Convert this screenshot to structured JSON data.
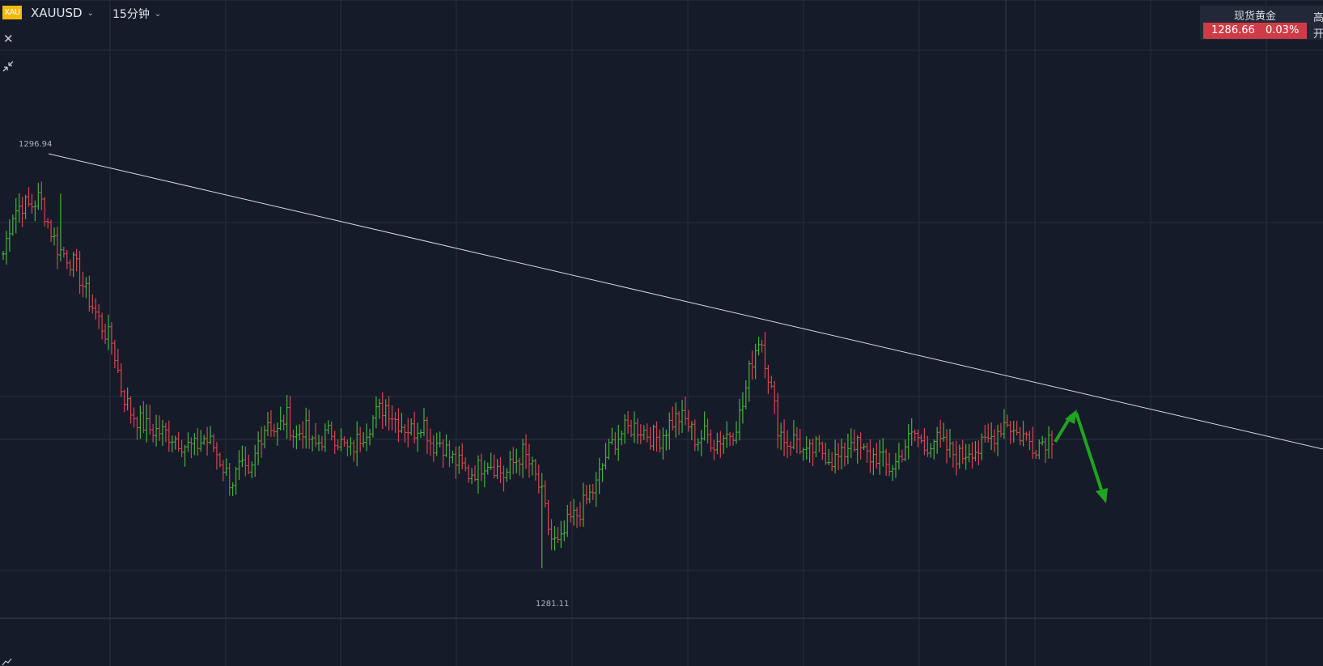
{
  "header": {
    "badge": "XAU",
    "symbol": "XAUUSD",
    "interval": "15分钟"
  },
  "icons": {
    "close": "close-icon",
    "shrink": "collapse-arrows-icon",
    "chevron": "chevron-down-icon",
    "bottom": "chart-line-icon"
  },
  "quote_panel": {
    "name": "现货黄金",
    "price": "1286.66",
    "change": "0.03%",
    "side_label_high": "高",
    "side_label_open": "开"
  },
  "colors": {
    "background": "#161b29",
    "up": "#45b33a",
    "down": "#d9434f",
    "trendline": "#d6d9df",
    "arrow": "#1fa51f",
    "badge": "#f0b90b",
    "price_bg": "#cf3c47"
  },
  "chart_data": {
    "type": "ohlc",
    "title": "",
    "xlabel": "",
    "ylabel": "",
    "ylim": [
      1279.0,
      1303.0
    ],
    "grid": true,
    "annotations": {
      "high_label": "1296.94",
      "low_label": "1281.11",
      "high": 1296.94,
      "low": 1281.11
    },
    "waypoints": [
      1294.4,
      1296.1,
      1296.5,
      1296.4,
      1296.8,
      1295.6,
      1294.6,
      1294.3,
      1293.8,
      1292.8,
      1292.0,
      1291.2,
      1290.6,
      1288.6,
      1287.7,
      1287.3,
      1287.0,
      1286.9,
      1286.8,
      1286.6,
      1286.3,
      1286.2,
      1286.6,
      1286.3,
      1285.5,
      1284.7,
      1285.4,
      1284.8,
      1286.5,
      1287.4,
      1286.8,
      1287.6,
      1286.6,
      1287.1,
      1286.2,
      1286.6,
      1286.9,
      1286.4,
      1286.0,
      1286.6,
      1287.1,
      1287.7,
      1288.0,
      1287.4,
      1287.1,
      1286.9,
      1287.4,
      1286.3,
      1286.5,
      1285.8,
      1285.5,
      1285.1,
      1285.3,
      1285.7,
      1285.4,
      1285.0,
      1285.6,
      1286.0,
      1285.3,
      1284.3,
      1282.4,
      1282.0,
      1283.1,
      1283.4,
      1284.0,
      1284.6,
      1285.8,
      1286.5,
      1286.9,
      1287.1,
      1287.0,
      1286.7,
      1286.6,
      1287.2,
      1287.5,
      1287.3,
      1286.5,
      1286.8,
      1286.4,
      1286.7,
      1286.9,
      1287.8,
      1289.8,
      1291.0,
      1289.1,
      1287.0,
      1286.4,
      1286.6,
      1285.8,
      1286.2,
      1286.0,
      1285.7,
      1285.8,
      1286.6,
      1286.1,
      1285.8,
      1285.9,
      1285.3,
      1285.6,
      1286.4,
      1286.8,
      1286.2,
      1286.6,
      1286.3,
      1286.0,
      1285.8,
      1286.2,
      1286.1,
      1286.5,
      1286.9,
      1287.4,
      1286.8,
      1286.7,
      1286.3,
      1286.5,
      1286.7
    ]
  }
}
